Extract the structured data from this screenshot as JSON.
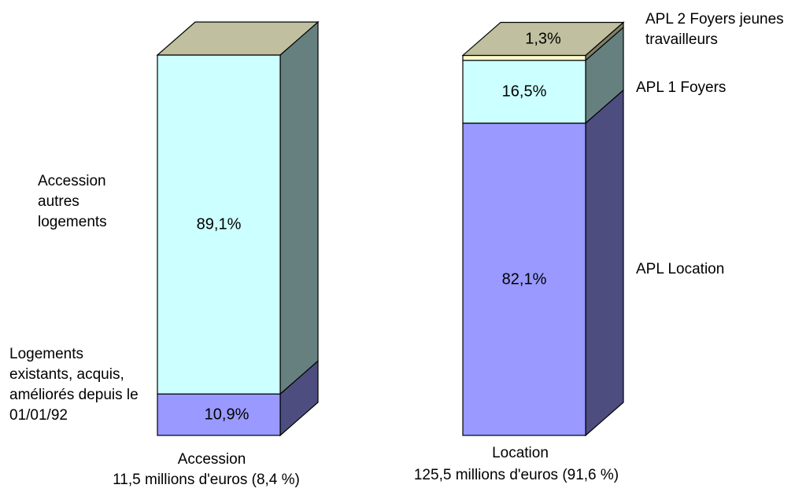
{
  "chart_data": {
    "type": "bar",
    "stacked": true,
    "three_d": true,
    "categories": [
      {
        "name": "Accession",
        "subtitle": "11,5 millions d'euros (8,4 %)",
        "segments": [
          {
            "label": "Logements existants, acquis, améliorés depuis le 01/01/92",
            "value": 10.9,
            "value_label": "10,9%",
            "color": "#9999ff"
          },
          {
            "label": "Accession autres logements",
            "value": 89.1,
            "value_label": "89,1%",
            "color": "#ccffff"
          }
        ]
      },
      {
        "name": "Location",
        "subtitle": "125,5 millions d'euros (91,6 %)",
        "segments": [
          {
            "label": "APL Location",
            "value": 82.1,
            "value_label": "82,1%",
            "color": "#9999ff"
          },
          {
            "label": "APL 1 Foyers",
            "value": 16.5,
            "value_label": "16,5%",
            "color": "#ccffff"
          },
          {
            "label": "APL 2 Foyers jeunes travailleurs",
            "value": 1.3,
            "value_label": "1,3%",
            "color": "#ffffcc"
          }
        ]
      }
    ],
    "top_face_color": "#c0c0a0",
    "ylim": [
      0,
      100
    ]
  },
  "left_labels": {
    "accession_autres": "Accession\nautres\nlogements",
    "logements_existants": "Logements\nexistants, acquis,\naméliorés depuis le\n01/01/92"
  },
  "right_labels": {
    "apl2": "APL 2 Foyers jeunes\ntravailleurs",
    "apl1": "APL 1 Foyers",
    "apl_location": "APL Location"
  }
}
